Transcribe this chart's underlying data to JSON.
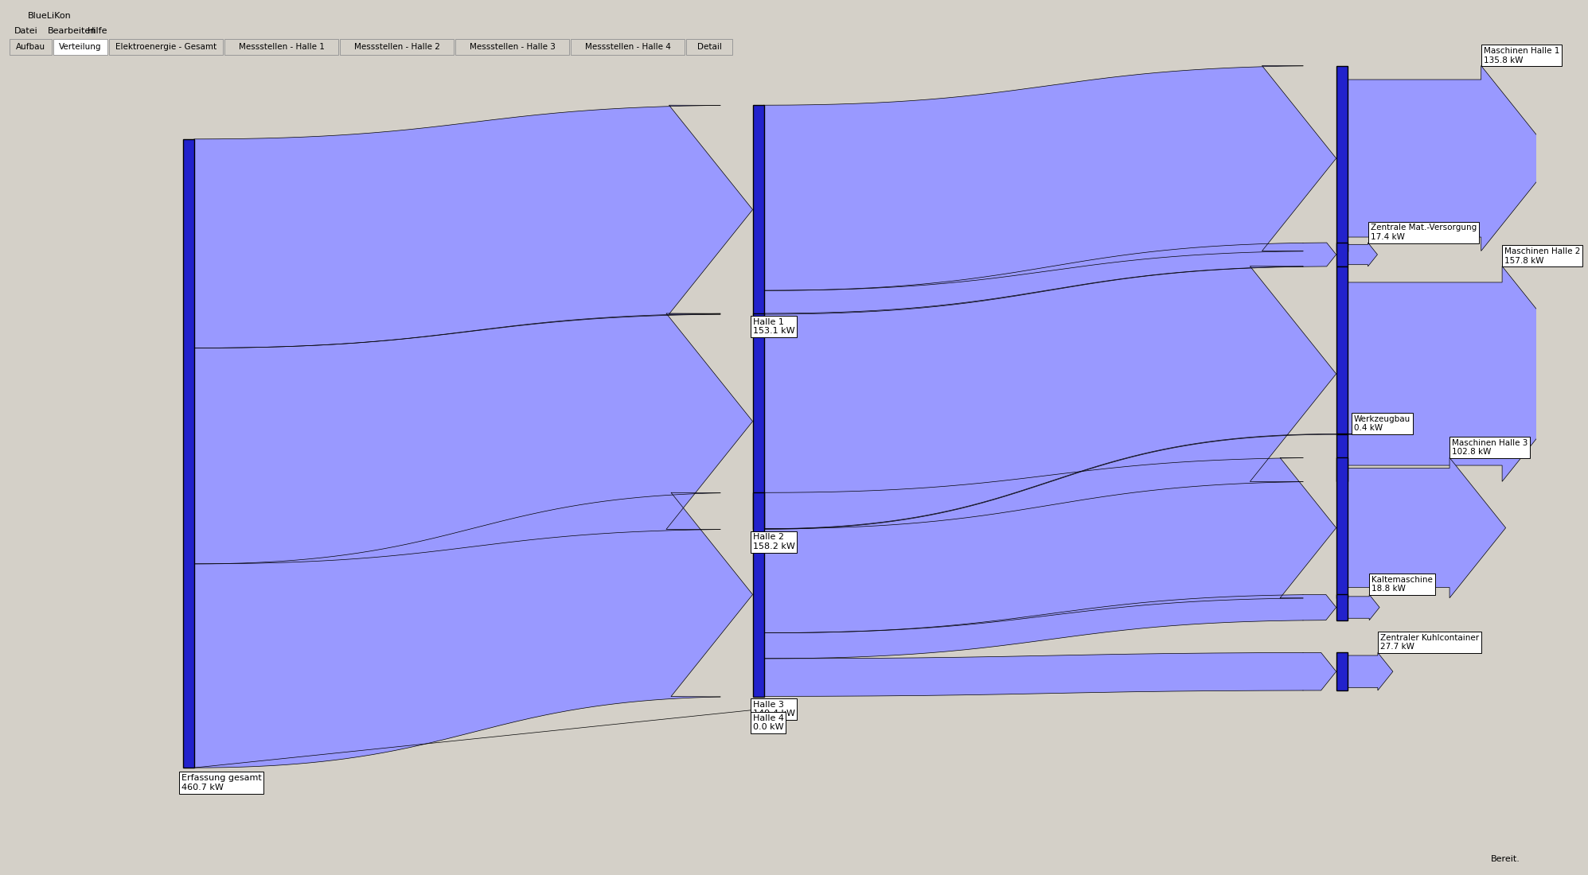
{
  "bg_color": "#d4d0c8",
  "flow_color": "#8080ff",
  "flow_fill_color": "#9999ff",
  "node_color": "#2222cc",
  "flow_edge_color": "#000000",
  "tab_bg": "#d4d0c8",
  "tab_active": "#ffffff",
  "tabs": [
    "Aufbau",
    "Verteilung",
    "Elektroenergie - Gesamt",
    "Messstellen - Halle 1",
    "Messstellen - Halle 2",
    "Messstellen - Halle 3",
    "Messstellen - Halle 4",
    "Detail"
  ],
  "active_tab": 1,
  "title_bar": "BlueLiKon",
  "menu_items": [
    "Datei",
    "Bearbeiten",
    "Hilfe"
  ],
  "status": "Bereit.",
  "total": 460.7,
  "source_label": "Erfassung gesamt",
  "source_value": 460.7,
  "hallen": [
    {
      "label": "Halle 1",
      "value": 153.1
    },
    {
      "label": "Halle 2",
      "value": 158.2
    },
    {
      "label": "Halle 3",
      "value": 149.4
    },
    {
      "label": "Halle 4",
      "value": 0.0
    }
  ],
  "outputs": [
    {
      "label": "Maschinen Halle 1",
      "value": 135.8,
      "halle": 0
    },
    {
      "label": "Zentrale Mat.-Versorgung",
      "value": 17.4,
      "halle": 0
    },
    {
      "label": "Maschinen Halle 2",
      "value": 157.8,
      "halle": 1
    },
    {
      "label": "Werkzeugbau",
      "value": 0.4,
      "halle": 1
    },
    {
      "label": "Maschinen Halle 3",
      "value": 102.8,
      "halle": 2
    },
    {
      "label": "Kaltemaschine",
      "value": 18.8,
      "halle": 2
    },
    {
      "label": "Zentraler Kuhlcontainer",
      "value": 27.7,
      "halle": 2
    }
  ]
}
